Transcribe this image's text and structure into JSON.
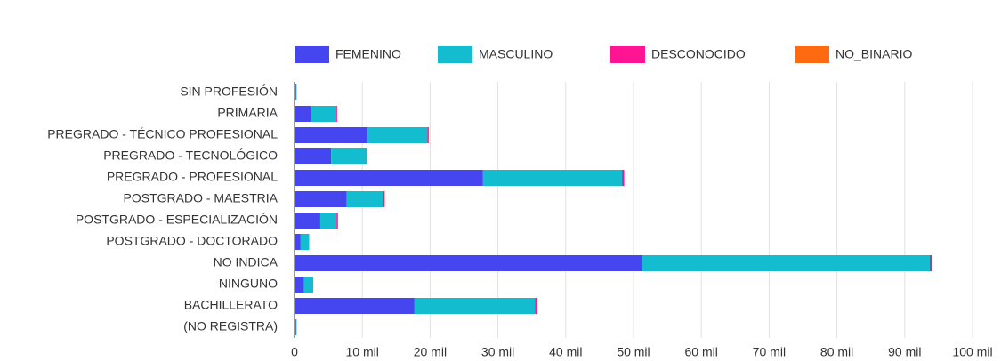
{
  "chart_data": {
    "type": "stacked_barh",
    "categories": [
      "SIN PROFESIÓN",
      "PRIMARIA",
      "PREGRADO - TÉCNICO PROFESIONAL",
      "PREGRADO - TECNOLÓGICO",
      "PREGRADO - PROFESIONAL",
      "POSTGRADO - MAESTRIA",
      "POSTGRADO - ESPECIALIZACIÓN",
      "POSTGRADO - DOCTORADO",
      "NO INDICA",
      "NINGUNO",
      "BACHILLERATO",
      "(NO REGISTRA)"
    ],
    "series": [
      {
        "name": "FEMENINO",
        "color": "#4646f0",
        "values": [
          200,
          2400,
          10800,
          5400,
          27800,
          7700,
          3800,
          900,
          51300,
          1400,
          17700,
          200
        ]
      },
      {
        "name": "MASCULINO",
        "color": "#14bccf",
        "values": [
          100,
          3800,
          8800,
          5100,
          20500,
          5400,
          2400,
          1200,
          42400,
          1300,
          17800,
          100
        ]
      },
      {
        "name": "DESCONOCIDO",
        "color": "#ff1493",
        "values": [
          10,
          100,
          200,
          100,
          300,
          200,
          200,
          50,
          300,
          50,
          300,
          10
        ]
      },
      {
        "name": "NO_BINARIO",
        "color": "#ff6a10",
        "values": [
          5,
          20,
          30,
          20,
          50,
          30,
          30,
          10,
          60,
          10,
          50,
          5
        ]
      }
    ],
    "xlim": [
      0,
      100000
    ],
    "xticks": [
      0,
      {
        "value": 10000,
        "label": "10 mil"
      },
      {
        "value": 20000,
        "label": "20 mil"
      },
      {
        "value": 30000,
        "label": "30 mil"
      },
      {
        "value": 40000,
        "label": "40 mil"
      },
      {
        "value": 50000,
        "label": "50 mil"
      },
      {
        "value": 60000,
        "label": "60 mil"
      },
      {
        "value": 70000,
        "label": "70 mil"
      },
      {
        "value": 80000,
        "label": "80 mil"
      },
      {
        "value": 90000,
        "label": "90 mil"
      },
      {
        "value": 100000,
        "label": "100 mil"
      }
    ],
    "grid": true,
    "legend": "top"
  }
}
